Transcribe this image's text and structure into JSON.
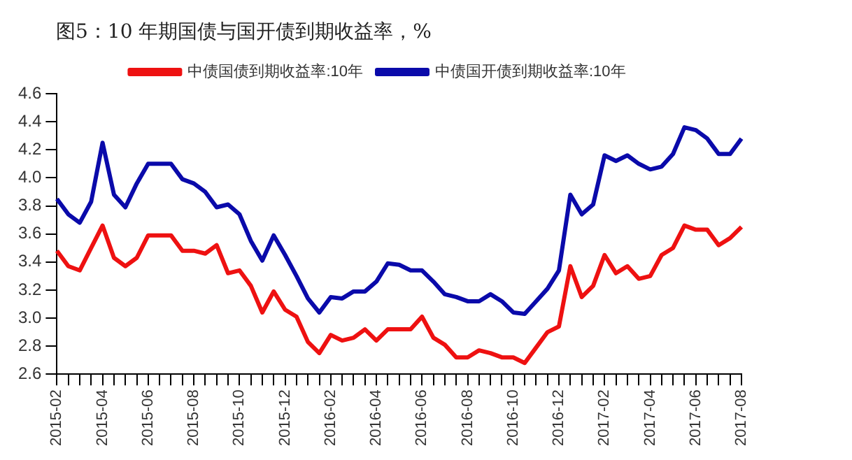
{
  "chart_data": {
    "type": "line",
    "title": "图5：10 年期国债与国开债到期收益率，%",
    "categories": [
      "2015-02",
      null,
      null,
      null,
      "2015-04",
      null,
      null,
      null,
      "2015-06",
      null,
      null,
      null,
      "2015-08",
      null,
      null,
      null,
      "2015-10",
      null,
      null,
      null,
      "2015-12",
      null,
      null,
      null,
      "2016-02",
      null,
      null,
      null,
      "2016-04",
      null,
      null,
      null,
      "2016-06",
      null,
      null,
      null,
      "2016-08",
      null,
      null,
      null,
      "2016-10",
      null,
      null,
      null,
      "2016-12",
      null,
      null,
      null,
      "2017-02",
      null,
      null,
      null,
      "2017-04",
      null,
      null,
      null,
      "2017-06",
      null,
      null,
      null,
      "2017-08"
    ],
    "series": [
      {
        "name": "中债国债到期收益率:10年",
        "color": "#ee1111",
        "values": [
          3.48,
          3.37,
          3.34,
          3.5,
          3.66,
          3.43,
          3.37,
          3.43,
          3.59,
          3.59,
          3.59,
          3.48,
          3.48,
          3.46,
          3.52,
          3.32,
          3.34,
          3.23,
          3.04,
          3.19,
          3.06,
          3.01,
          2.83,
          2.75,
          2.88,
          2.84,
          2.86,
          2.92,
          2.84,
          2.92,
          2.92,
          2.92,
          3.01,
          2.86,
          2.81,
          2.72,
          2.72,
          2.77,
          2.75,
          2.72,
          2.72,
          2.68,
          2.79,
          2.9,
          2.94,
          3.37,
          3.15,
          3.23,
          3.45,
          3.32,
          3.37,
          3.28,
          3.3,
          3.45,
          3.5,
          3.66,
          3.63,
          3.63,
          3.52,
          3.57,
          3.65
        ]
      },
      {
        "name": "中债国开债到期收益率:10年",
        "color": "#0a0aaa",
        "values": [
          3.85,
          3.74,
          3.68,
          3.83,
          4.25,
          3.88,
          3.79,
          3.96,
          4.1,
          4.1,
          4.1,
          3.99,
          3.96,
          3.9,
          3.79,
          3.81,
          3.74,
          3.55,
          3.41,
          3.59,
          3.45,
          3.3,
          3.14,
          3.04,
          3.15,
          3.14,
          3.19,
          3.19,
          3.26,
          3.39,
          3.38,
          3.34,
          3.34,
          3.26,
          3.17,
          3.15,
          3.12,
          3.12,
          3.17,
          3.12,
          3.04,
          3.03,
          3.12,
          3.21,
          3.34,
          3.88,
          3.74,
          3.81,
          4.16,
          4.12,
          4.16,
          4.1,
          4.06,
          4.08,
          4.17,
          4.36,
          4.34,
          4.28,
          4.17,
          4.17,
          4.28
        ]
      }
    ],
    "ylim": [
      2.6,
      4.6
    ],
    "yticks": [
      2.6,
      2.8,
      {
        "value": 3,
        "label": "3.0"
      },
      3.2,
      3.4,
      3.6,
      3.8,
      {
        "value": 4,
        "label": "4.0"
      },
      4.2,
      4.4,
      4.6
    ],
    "legend": "top",
    "marker": "none",
    "line_style": "solid"
  }
}
